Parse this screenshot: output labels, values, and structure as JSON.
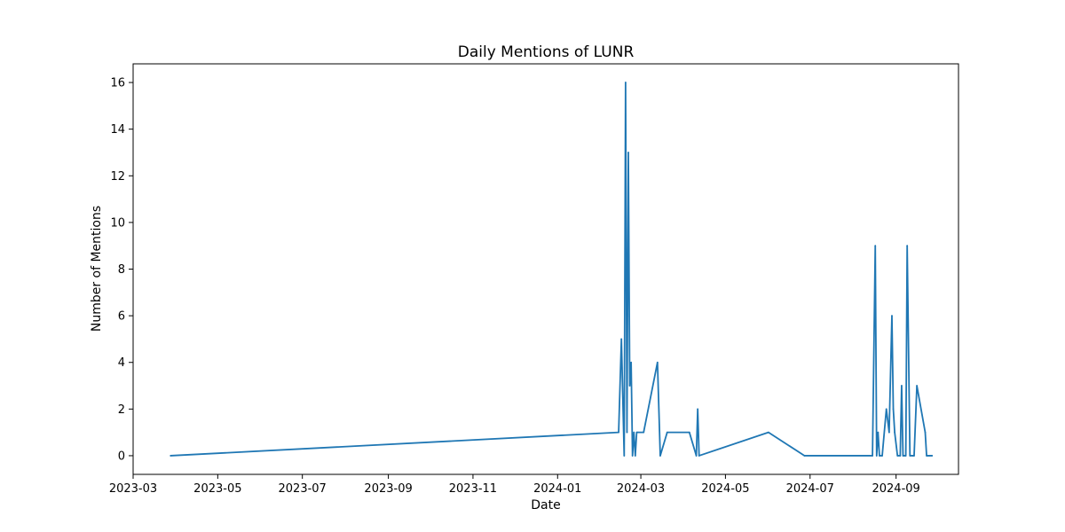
{
  "chart_data": {
    "type": "line",
    "title": "Daily Mentions of LUNR",
    "xlabel": "Date",
    "ylabel": "Number of Mentions",
    "xlim": [
      "2023-03-01",
      "2024-10-16"
    ],
    "ylim": [
      -0.8,
      16.8
    ],
    "grid": false,
    "legend": "none",
    "x_ticks": [
      "2023-03",
      "2023-05",
      "2023-07",
      "2023-09",
      "2023-11",
      "2024-01",
      "2024-03",
      "2024-05",
      "2024-07",
      "2024-09"
    ],
    "x_tick_dates": [
      "2023-03-01",
      "2023-05-01",
      "2023-07-01",
      "2023-09-01",
      "2023-11-01",
      "2024-01-01",
      "2024-03-01",
      "2024-05-01",
      "2024-07-01",
      "2024-09-01"
    ],
    "y_ticks": [
      0,
      2,
      4,
      6,
      8,
      10,
      12,
      14,
      16
    ],
    "series": [
      {
        "color": "#1f77b4",
        "x": [
          "2023-03-28",
          "2024-02-14",
          "2024-02-16",
          "2024-02-18",
          "2024-02-19",
          "2024-02-20",
          "2024-02-21",
          "2024-02-22",
          "2024-02-23",
          "2024-02-24",
          "2024-02-25",
          "2024-02-26",
          "2024-02-27",
          "2024-02-28",
          "2024-03-03",
          "2024-03-13",
          "2024-03-15",
          "2024-03-20",
          "2024-04-05",
          "2024-04-10",
          "2024-04-11",
          "2024-04-12",
          "2024-06-01",
          "2024-06-27",
          "2024-08-15",
          "2024-08-17",
          "2024-08-18",
          "2024-08-19",
          "2024-08-20",
          "2024-08-22",
          "2024-08-25",
          "2024-08-27",
          "2024-08-29",
          "2024-08-30",
          "2024-08-31",
          "2024-09-02",
          "2024-09-04",
          "2024-09-05",
          "2024-09-06",
          "2024-09-07",
          "2024-09-08",
          "2024-09-09",
          "2024-09-11",
          "2024-09-13",
          "2024-09-14",
          "2024-09-16",
          "2024-09-22",
          "2024-09-23",
          "2024-09-24",
          "2024-09-25",
          "2024-09-27"
        ],
        "values": [
          0,
          1,
          5,
          0,
          16,
          1,
          13,
          3,
          4,
          0,
          1,
          0,
          1,
          1,
          1,
          4,
          0,
          1,
          1,
          0,
          2,
          0,
          1,
          0,
          0,
          9,
          0,
          1,
          0,
          0,
          2,
          1,
          6,
          2,
          1,
          0,
          0,
          3,
          0,
          0,
          0,
          9,
          0,
          0,
          0,
          3,
          1,
          0,
          0,
          0,
          0
        ]
      }
    ]
  }
}
